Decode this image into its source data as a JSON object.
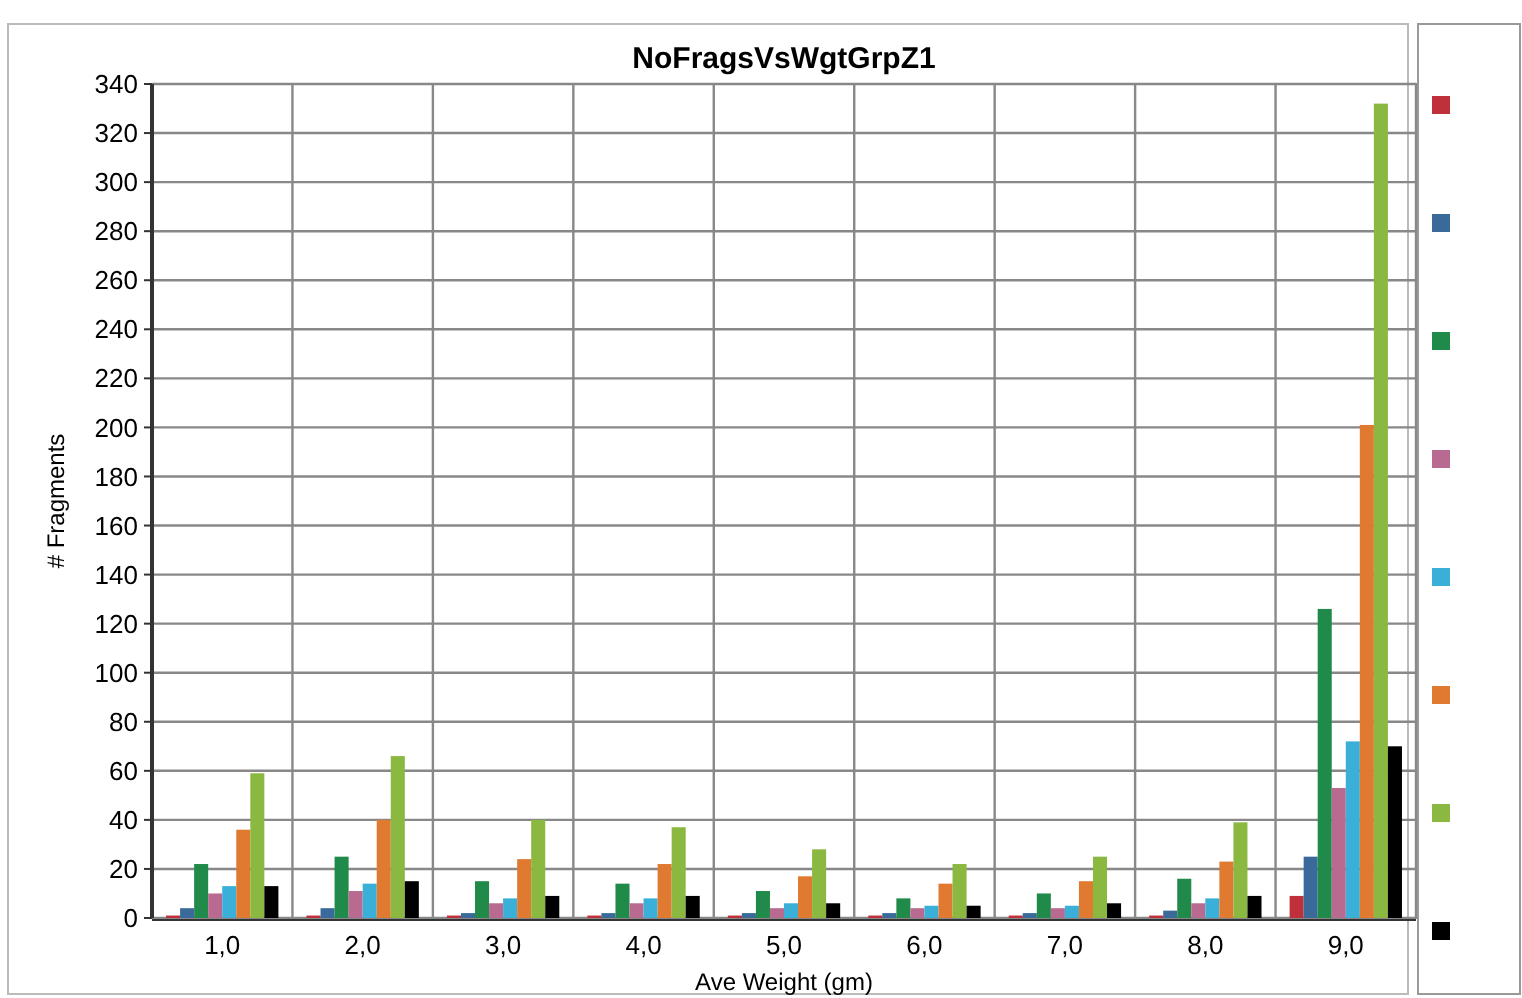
{
  "chart_data": {
    "type": "bar",
    "title": "NoFragsVsWgtGrpZ1",
    "xlabel": "Ave Weight (gm)",
    "ylabel": "# Fragments",
    "categories": [
      "1,0",
      "2,0",
      "3,0",
      "4,0",
      "5,0",
      "6,0",
      "7,0",
      "8,0",
      "9,0"
    ],
    "series": [
      {
        "color": "#c0303a",
        "values": [
          1,
          1,
          1,
          1,
          1,
          1,
          1,
          1,
          9
        ]
      },
      {
        "color": "#3a6a9a",
        "values": [
          4,
          4,
          2,
          2,
          2,
          2,
          2,
          3,
          25
        ]
      },
      {
        "color": "#1f8a4a",
        "values": [
          22,
          25,
          15,
          14,
          11,
          8,
          10,
          16,
          126
        ]
      },
      {
        "color": "#b86a90",
        "values": [
          10,
          11,
          6,
          6,
          4,
          4,
          4,
          6,
          53
        ]
      },
      {
        "color": "#3ab0d8",
        "values": [
          13,
          14,
          8,
          8,
          6,
          5,
          5,
          8,
          72
        ]
      },
      {
        "color": "#e07a30",
        "values": [
          36,
          40,
          24,
          22,
          17,
          14,
          15,
          23,
          201
        ]
      },
      {
        "color": "#8ab840",
        "values": [
          59,
          66,
          40,
          37,
          28,
          22,
          25,
          39,
          332
        ]
      },
      {
        "color": "#000000",
        "values": [
          13,
          15,
          9,
          9,
          6,
          5,
          6,
          9,
          70
        ]
      }
    ],
    "ylim": [
      0,
      340
    ],
    "yticks": [
      0,
      20,
      40,
      60,
      80,
      100,
      120,
      140,
      160,
      180,
      200,
      220,
      240,
      260,
      280,
      300,
      320,
      340
    ],
    "grid": true
  }
}
